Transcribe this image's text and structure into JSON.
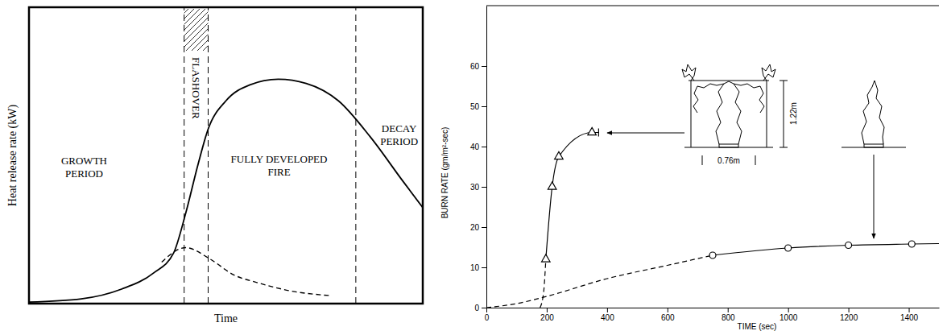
{
  "chart_data": [
    {
      "type": "line",
      "x_label": "Time",
      "y_label": "Heat release rate (kW)",
      "xlim": [
        0,
        100
      ],
      "ylim": [
        0,
        100
      ],
      "tick_labels": false,
      "series": [
        {
          "color": "#000000",
          "line_style": "solid",
          "x": [
            0,
            13.3,
            23.5,
            31.6,
            36.7,
            39.8,
            42.9,
            45.5,
            50,
            56.1,
            63.3,
            70.4,
            78.6,
            86.7,
            94.9,
            100
          ],
          "values": [
            0.5,
            1.6,
            4.9,
            10.3,
            17,
            30.5,
            46.8,
            58.9,
            68.4,
            73.8,
            75.7,
            74.3,
            68.4,
            56.2,
            41.4,
            32.4
          ]
        },
        {
          "color": "#000000",
          "line_style": "dashed",
          "x": [
            33.7,
            39.8,
            45.9,
            52,
            58.2,
            66.3,
            76.5
          ],
          "values": [
            14,
            18.9,
            15.1,
            9.7,
            7,
            4.3,
            2.7
          ]
        }
      ],
      "vlines": [
        39.4,
        45.5,
        83
      ],
      "annotations": [
        "GROWTH PERIOD",
        "FLASHOVER",
        "FULLY DEVELOPED FIRE",
        "DECAY PERIOD"
      ]
    },
    {
      "type": "line",
      "x_label": "TIME (sec)",
      "y_label": "BURN RATE (gm/m²-sec)",
      "xlim": [
        0,
        1500
      ],
      "ylim": [
        0,
        75
      ],
      "xticks": [
        0,
        200,
        400,
        600,
        800,
        1000,
        1200,
        1400
      ],
      "yticks": [
        0,
        10,
        20,
        30,
        40,
        50,
        60
      ],
      "series": [
        {
          "type": "line",
          "color": "#000000",
          "line_style": "dashed",
          "marker": "none",
          "x": [
            178,
            190,
            197
          ],
          "values": [
            0,
            4,
            12
          ]
        },
        {
          "type": "line",
          "color": "#000000",
          "line_style": "solid",
          "marker": "end_bar",
          "x": [
            197,
            218,
            240,
            350,
            372
          ],
          "values": [
            12,
            30,
            37.5,
            43.5,
            43.5
          ]
        },
        {
          "type": "scatter",
          "color": "#000000",
          "marker": "triangle",
          "x": [
            197,
            218,
            240,
            350
          ],
          "values": [
            12,
            30,
            37.5,
            43.5
          ]
        },
        {
          "type": "line",
          "color": "#000000",
          "line_style": "dashed",
          "marker": "none",
          "x": [
            0,
            100,
            200,
            400,
            600,
            750
          ],
          "values": [
            0,
            1,
            2.8,
            7.2,
            10.5,
            13
          ]
        },
        {
          "type": "line",
          "color": "#000000",
          "line_style": "solid",
          "marker": "none",
          "x": [
            750,
            1000,
            1200,
            1410,
            1500
          ],
          "values": [
            13,
            14.8,
            15.5,
            15.8,
            15.9
          ]
        },
        {
          "type": "scatter",
          "color": "#000000",
          "marker": "circle",
          "x": [
            750,
            1000,
            1200,
            1410
          ],
          "values": [
            13,
            14.8,
            15.5,
            15.8
          ]
        }
      ],
      "annotations": [
        "1.22m",
        "0.76m"
      ]
    }
  ]
}
